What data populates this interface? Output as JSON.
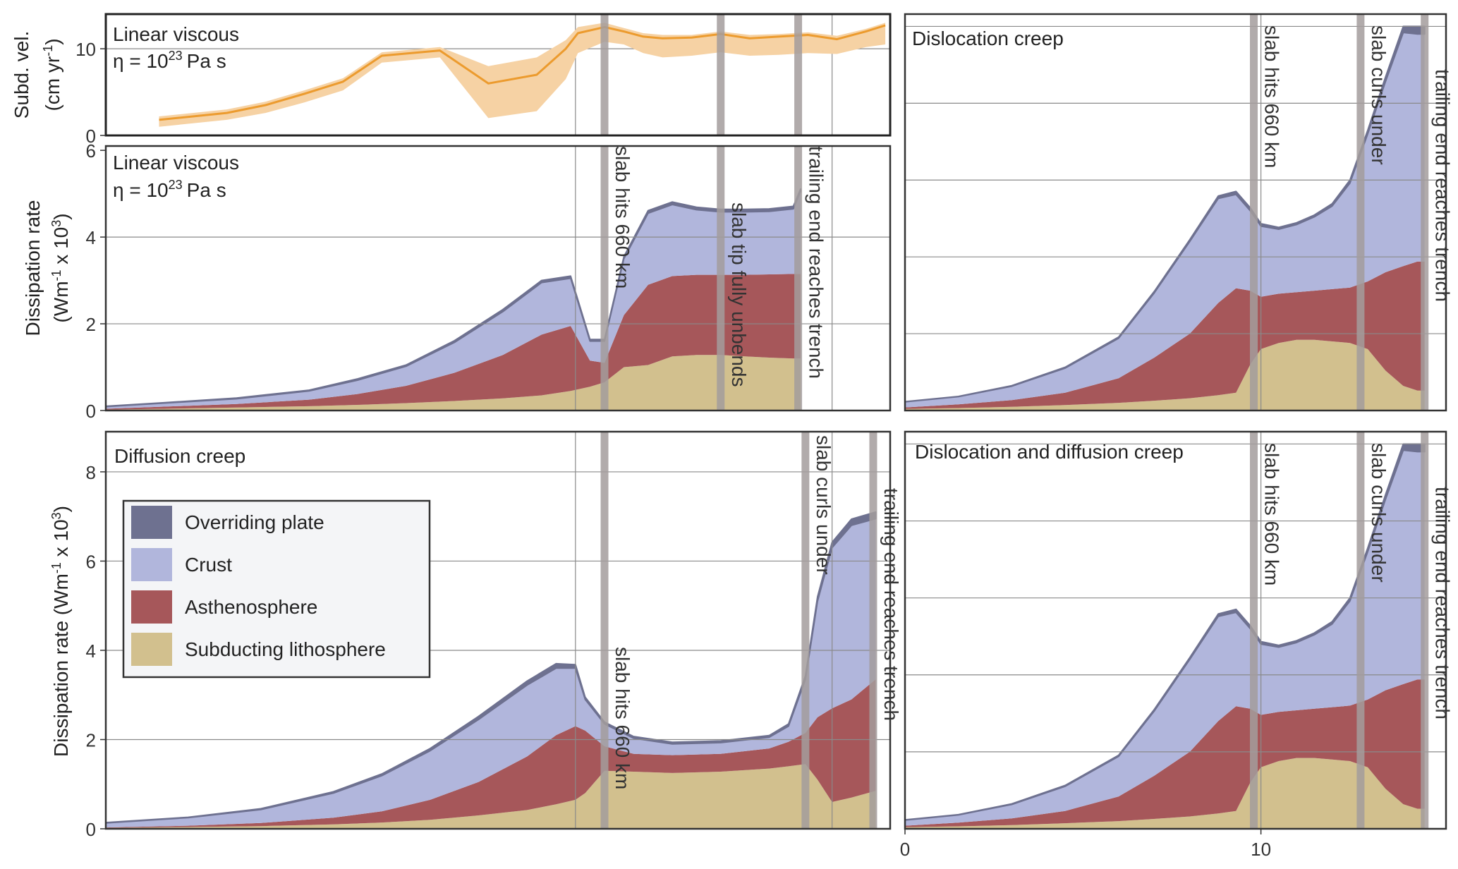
{
  "colors": {
    "overriding": "#6e7190",
    "crust": "#b1b6dc",
    "asthenosphere": "#a6575a",
    "subducting": "#d2c08e",
    "velocity_line": "#ec9b2e",
    "velocity_band": "#f6d2a4",
    "event_bar": "#a39c9c",
    "grid": "#8a8a8a",
    "frame": "#333333"
  },
  "legend": {
    "entries": [
      "Overriding plate",
      "Crust",
      "Asthenosphere",
      "Subducting lithosphere"
    ]
  },
  "chart_data": [
    {
      "id": "velocity",
      "type": "line",
      "title": "Linear viscous",
      "subtitle_eta": "η = 10",
      "subtitle_exp": "23",
      "subtitle_unit": "Pa s",
      "ylabel_line1": "Subd. vel.",
      "ylabel_line2": "(cm yr",
      "ylabel_sup": "-1",
      "ylabel_close": ")",
      "xlim": [
        -1.7,
        14.5
      ],
      "ylim": [
        0,
        14
      ],
      "yticks": [
        0,
        10
      ],
      "ytick_labels": [
        "0",
        "10"
      ],
      "grid_x": [
        8.0,
        13.3
      ],
      "grid_y": [
        10
      ],
      "events": [
        8.6,
        11.0,
        12.6
      ],
      "series": [
        {
          "name": "Subduction velocity",
          "x": [
            -0.6,
            0.8,
            1.6,
            2.4,
            3.2,
            4.0,
            5.2,
            6.2,
            7.2,
            7.8,
            8.05,
            8.6,
            9.0,
            9.4,
            9.8,
            10.4,
            11.0,
            11.6,
            12.2,
            12.8,
            13.4,
            14.0,
            14.4
          ],
          "y": [
            1.8,
            2.6,
            3.5,
            4.8,
            6.2,
            9.2,
            9.8,
            6.0,
            7.0,
            10.0,
            11.8,
            12.5,
            12.0,
            11.4,
            11.2,
            11.3,
            11.7,
            11.2,
            11.4,
            11.6,
            11.1,
            12.0,
            12.7
          ]
        },
        {
          "name": "Range low",
          "x": [
            -0.6,
            0.8,
            1.6,
            2.4,
            3.2,
            4.0,
            5.2,
            6.2,
            7.2,
            7.8,
            8.05,
            8.6,
            9.0,
            9.4,
            9.8,
            10.4,
            11.0,
            11.6,
            12.2,
            12.8,
            13.4,
            14.0,
            14.4
          ],
          "y": [
            1.0,
            1.8,
            2.6,
            3.8,
            5.2,
            8.4,
            9.0,
            2.0,
            2.8,
            6.5,
            9.5,
            10.8,
            10.5,
            9.5,
            9.0,
            9.2,
            9.6,
            9.2,
            9.3,
            9.5,
            9.4,
            10.2,
            10.5
          ]
        },
        {
          "name": "Range high",
          "x": [
            -0.6,
            0.8,
            1.6,
            2.4,
            3.2,
            4.0,
            5.2,
            6.2,
            7.2,
            7.8,
            8.05,
            8.6,
            9.0,
            9.4,
            9.8,
            10.4,
            11.0,
            11.6,
            12.2,
            12.8,
            13.4,
            14.0,
            14.4
          ],
          "y": [
            2.2,
            3.0,
            3.9,
            5.2,
            6.6,
            9.6,
            10.2,
            8.0,
            9.0,
            11.0,
            12.5,
            13.0,
            12.4,
            11.8,
            11.6,
            11.6,
            12.0,
            11.6,
            11.7,
            11.9,
            11.5,
            12.3,
            13.0
          ]
        }
      ]
    },
    {
      "id": "linear-viscous",
      "type": "area",
      "stacked": true,
      "title": "Linear viscous",
      "subtitle_eta": "η = 10",
      "subtitle_exp": "23",
      "subtitle_unit": "Pa s",
      "ylabel_line1": "Dissipation rate",
      "ylabel_line2": "(Wm",
      "ylabel_sup1": "-1",
      "ylabel_mid": " x 10",
      "ylabel_sup2": "3",
      "ylabel_close": ")",
      "xlim": [
        -1.7,
        14.5
      ],
      "ylim": [
        0,
        6.1
      ],
      "yticks": [
        0,
        2,
        4,
        6
      ],
      "ytick_labels": [
        "0",
        "2",
        "4",
        "6"
      ],
      "grid_x": [
        8.0,
        13.3
      ],
      "grid_y": [
        2,
        4
      ],
      "events": [
        8.6,
        11.0,
        12.6
      ],
      "event_labels": [
        "slab hits 660 km",
        "slab tip fully unbends",
        "trailing end reaches trench"
      ],
      "x": [
        -1.7,
        -0.5,
        1,
        2.5,
        3.5,
        4.5,
        5.5,
        6.5,
        7.3,
        7.9,
        8.3,
        8.6,
        9.0,
        9.5,
        10.0,
        10.5,
        11.0,
        11.5,
        12.0,
        12.5,
        12.65
      ],
      "layers": [
        {
          "name": "Subducting lithosphere",
          "values": [
            0.02,
            0.04,
            0.07,
            0.1,
            0.13,
            0.17,
            0.22,
            0.28,
            0.35,
            0.45,
            0.55,
            0.65,
            1.0,
            1.05,
            1.25,
            1.28,
            1.28,
            1.25,
            1.22,
            1.2,
            1.2
          ]
        },
        {
          "name": "Asthenosphere",
          "values": [
            0.02,
            0.05,
            0.08,
            0.15,
            0.25,
            0.4,
            0.65,
            1.0,
            1.4,
            1.5,
            0.6,
            0.45,
            1.2,
            1.85,
            1.85,
            1.85,
            1.85,
            1.88,
            1.92,
            1.95,
            1.95
          ]
        },
        {
          "name": "Crust",
          "values": [
            0.05,
            0.08,
            0.12,
            0.2,
            0.32,
            0.45,
            0.7,
            1.0,
            1.2,
            1.1,
            0.45,
            0.5,
            1.3,
            1.65,
            1.65,
            1.5,
            1.45,
            1.45,
            1.45,
            1.5,
            1.9
          ]
        },
        {
          "name": "Overriding plate",
          "values": [
            0.01,
            0.01,
            0.02,
            0.02,
            0.03,
            0.03,
            0.04,
            0.05,
            0.05,
            0.05,
            0.04,
            0.04,
            0.05,
            0.06,
            0.06,
            0.06,
            0.06,
            0.06,
            0.06,
            0.06,
            0.06
          ]
        }
      ]
    },
    {
      "id": "dislocation-creep",
      "type": "area",
      "stacked": true,
      "title": "Dislocation creep",
      "xlim": [
        0,
        15.2
      ],
      "ylim": [
        0,
        12.9
      ],
      "grid_x": [
        10
      ],
      "grid_y": [
        2.5,
        5,
        7.5,
        10,
        12.5
      ],
      "events": [
        9.8,
        12.8,
        14.6
      ],
      "event_labels": [
        "slab hits 660 km",
        "slab curls under",
        "trailing end reaches trench"
      ],
      "x": [
        0,
        1.5,
        3.0,
        4.5,
        6.0,
        7.0,
        8.0,
        8.8,
        9.3,
        9.7,
        10.0,
        10.5,
        11.0,
        11.5,
        12.0,
        12.5,
        13.0,
        13.5,
        14.0,
        14.4,
        14.6
      ],
      "layers": [
        {
          "name": "Subducting lithosphere",
          "values": [
            0.05,
            0.08,
            0.12,
            0.18,
            0.25,
            0.32,
            0.4,
            0.5,
            0.58,
            1.5,
            2.0,
            2.2,
            2.3,
            2.3,
            2.25,
            2.2,
            2.0,
            1.3,
            0.8,
            0.65,
            0.65
          ]
        },
        {
          "name": "Asthenosphere",
          "values": [
            0.05,
            0.12,
            0.22,
            0.4,
            0.8,
            1.4,
            2.1,
            3.0,
            3.4,
            2.4,
            1.7,
            1.6,
            1.55,
            1.6,
            1.7,
            1.8,
            2.2,
            3.2,
            3.9,
            4.2,
            4.2
          ]
        },
        {
          "name": "Crust",
          "values": [
            0.18,
            0.25,
            0.45,
            0.8,
            1.3,
            2.1,
            3.0,
            3.4,
            3.05,
            2.6,
            2.3,
            2.1,
            2.2,
            2.4,
            2.7,
            3.4,
            4.8,
            6.2,
            7.6,
            7.4,
            7.4
          ]
        },
        {
          "name": "Overriding plate",
          "values": [
            0.01,
            0.01,
            0.02,
            0.03,
            0.04,
            0.05,
            0.06,
            0.08,
            0.1,
            0.1,
            0.08,
            0.06,
            0.06,
            0.06,
            0.08,
            0.1,
            0.12,
            0.15,
            0.2,
            0.25,
            0.25
          ]
        }
      ]
    },
    {
      "id": "diffusion-creep",
      "type": "area",
      "stacked": true,
      "title": "Diffusion creep",
      "ylabel_line1": "Dissipation rate (Wm",
      "ylabel_sup1": "-1",
      "ylabel_mid": " x 10",
      "ylabel_sup2": "3",
      "ylabel_close": ")",
      "xlim": [
        -1.7,
        14.5
      ],
      "ylim": [
        0,
        8.9
      ],
      "yticks": [
        0,
        2,
        4,
        6,
        8
      ],
      "ytick_labels": [
        "0",
        "2",
        "4",
        "6",
        "8"
      ],
      "grid_x": [
        8.0,
        13.3
      ],
      "grid_y": [
        2,
        4,
        6,
        8
      ],
      "events": [
        8.6,
        12.75,
        14.15
      ],
      "event_labels": [
        "slab hits 660 km",
        "slab curls under",
        "trailing end reaches trench"
      ],
      "x": [
        -1.7,
        0,
        1.5,
        3.0,
        4.0,
        5.0,
        6.0,
        7.0,
        7.6,
        8.0,
        8.2,
        8.6,
        9.2,
        10.0,
        11.0,
        12.0,
        12.4,
        12.75,
        13.0,
        13.3,
        13.7,
        14.2
      ],
      "layers": [
        {
          "name": "Subducting lithosphere",
          "values": [
            0.02,
            0.04,
            0.06,
            0.1,
            0.14,
            0.2,
            0.3,
            0.42,
            0.55,
            0.65,
            0.8,
            1.3,
            1.28,
            1.25,
            1.28,
            1.35,
            1.4,
            1.45,
            1.1,
            0.6,
            0.7,
            0.85
          ]
        },
        {
          "name": "Asthenosphere",
          "values": [
            0.01,
            0.03,
            0.07,
            0.15,
            0.25,
            0.45,
            0.75,
            1.2,
            1.55,
            1.65,
            1.4,
            0.55,
            0.4,
            0.4,
            0.4,
            0.45,
            0.55,
            0.7,
            1.4,
            2.1,
            2.2,
            2.5
          ]
        },
        {
          "name": "Crust",
          "values": [
            0.1,
            0.18,
            0.3,
            0.55,
            0.8,
            1.1,
            1.4,
            1.6,
            1.5,
            1.3,
            0.7,
            0.5,
            0.35,
            0.25,
            0.25,
            0.25,
            0.35,
            1.2,
            2.6,
            3.6,
            3.9,
            3.6
          ]
        },
        {
          "name": "Overriding plate",
          "values": [
            0.01,
            0.01,
            0.02,
            0.03,
            0.04,
            0.05,
            0.07,
            0.09,
            0.1,
            0.08,
            0.05,
            0.04,
            0.04,
            0.04,
            0.04,
            0.04,
            0.05,
            0.08,
            0.1,
            0.12,
            0.14,
            0.15
          ]
        }
      ]
    },
    {
      "id": "dislocation-diffusion-creep",
      "type": "area",
      "stacked": true,
      "title": "Dislocation and diffusion creep",
      "xlim": [
        0,
        15.2
      ],
      "ylim": [
        0,
        12.9
      ],
      "xticks": [
        0,
        10
      ],
      "xtick_labels": [
        "0",
        "10"
      ],
      "grid_x": [
        10
      ],
      "grid_y": [
        2.5,
        5,
        7.5,
        10,
        12.5
      ],
      "events": [
        9.8,
        12.8,
        14.6
      ],
      "event_labels": [
        "slab hits 660 km",
        "slab curls under",
        "trailing end reaches trench"
      ],
      "x": [
        0,
        1.5,
        3.0,
        4.5,
        6.0,
        7.0,
        8.0,
        8.8,
        9.3,
        9.7,
        10.0,
        10.5,
        11.0,
        11.5,
        12.0,
        12.5,
        13.0,
        13.5,
        14.0,
        14.4,
        14.6
      ],
      "layers": [
        {
          "name": "Subducting lithosphere",
          "values": [
            0.05,
            0.08,
            0.12,
            0.18,
            0.25,
            0.32,
            0.4,
            0.5,
            0.58,
            1.5,
            2.0,
            2.2,
            2.3,
            2.3,
            2.25,
            2.2,
            2.0,
            1.3,
            0.8,
            0.65,
            0.65
          ]
        },
        {
          "name": "Asthenosphere",
          "values": [
            0.05,
            0.12,
            0.22,
            0.4,
            0.8,
            1.4,
            2.1,
            3.0,
            3.4,
            2.4,
            1.7,
            1.6,
            1.55,
            1.6,
            1.7,
            1.8,
            2.2,
            3.2,
            3.9,
            4.2,
            4.2
          ]
        },
        {
          "name": "Crust",
          "values": [
            0.18,
            0.25,
            0.45,
            0.8,
            1.3,
            2.1,
            3.0,
            3.4,
            3.05,
            2.6,
            2.3,
            2.1,
            2.2,
            2.4,
            2.7,
            3.4,
            4.8,
            6.2,
            7.6,
            7.4,
            7.4
          ]
        },
        {
          "name": "Overriding plate",
          "values": [
            0.01,
            0.01,
            0.02,
            0.03,
            0.04,
            0.05,
            0.06,
            0.08,
            0.1,
            0.1,
            0.08,
            0.06,
            0.06,
            0.06,
            0.08,
            0.1,
            0.12,
            0.15,
            0.2,
            0.25,
            0.25
          ]
        }
      ]
    }
  ]
}
